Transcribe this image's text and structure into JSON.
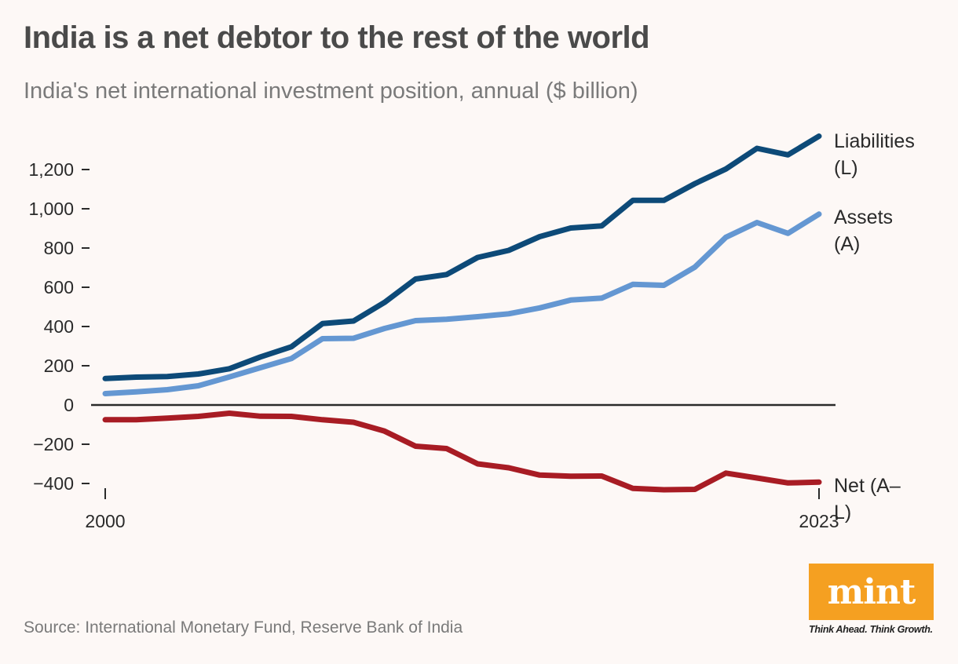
{
  "chart_data": {
    "type": "line",
    "title": "India is a net debtor to the rest of the world",
    "subtitle": "India's net international investment position, annual ($ billion)",
    "x": [
      2000,
      2001,
      2002,
      2003,
      2004,
      2005,
      2006,
      2007,
      2008,
      2009,
      2010,
      2011,
      2012,
      2013,
      2014,
      2015,
      2016,
      2017,
      2018,
      2019,
      2020,
      2021,
      2022,
      2023
    ],
    "x_tick_labels": [
      "2000",
      "2023"
    ],
    "y_ticks": [
      -400,
      -200,
      0,
      200,
      400,
      600,
      800,
      1000,
      1200
    ],
    "y_tick_labels": [
      "−400",
      "−200",
      "0",
      "200",
      "400",
      "600",
      "800",
      "1,000",
      "1,200"
    ],
    "ylim": [
      -450,
      1300
    ],
    "series": [
      {
        "name": "Liabilities (L)",
        "label_lines": [
          "Liabilities",
          "(L)"
        ],
        "color": "#0d4a78",
        "values": [
          135,
          142,
          145,
          158,
          185,
          245,
          297,
          415,
          428,
          523,
          642,
          665,
          752,
          788,
          858,
          902,
          913,
          1043,
          1043,
          1128,
          1203,
          1308,
          1275,
          1370
        ]
      },
      {
        "name": "Assets (A)",
        "label_lines": [
          "Assets",
          "(A)"
        ],
        "color": "#6497d2",
        "values": [
          58,
          67,
          78,
          98,
          143,
          190,
          237,
          338,
          340,
          390,
          430,
          437,
          450,
          465,
          495,
          535,
          545,
          615,
          610,
          703,
          855,
          930,
          875,
          973
        ]
      },
      {
        "name": "Net (A–L)",
        "label_lines": [
          "Net (A–",
          "L)"
        ],
        "color": "#a81c24",
        "values": [
          -75,
          -75,
          -67,
          -58,
          -42,
          -57,
          -58,
          -75,
          -88,
          -133,
          -210,
          -222,
          -300,
          -320,
          -357,
          -363,
          -362,
          -425,
          -432,
          -430,
          -347,
          -372,
          -397,
          -393
        ]
      }
    ]
  },
  "source": "Source: International Monetary Fund, Reserve Bank of India",
  "logo": {
    "word": "mint",
    "tagline": "Think Ahead. Think Growth.",
    "color": "#f5a021"
  }
}
